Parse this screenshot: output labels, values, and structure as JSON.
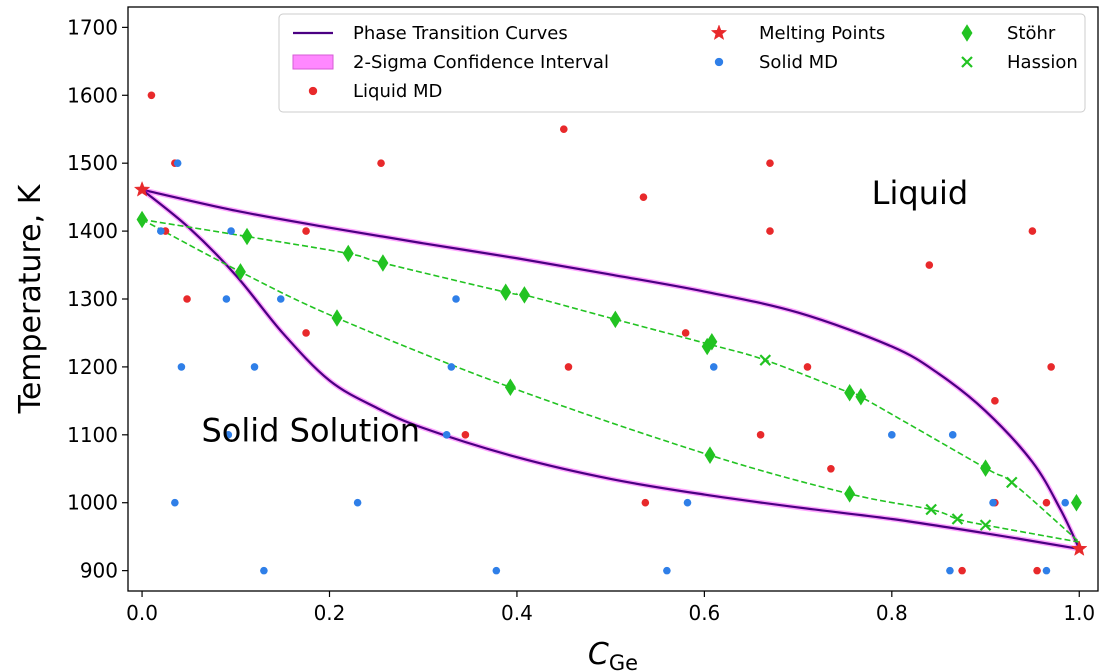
{
  "chart_data": {
    "type": "scatter",
    "xlabel": "C",
    "xlabel_sub": "Ge",
    "ylabel": "Temperature, K",
    "xlim": [
      -0.015,
      1.02
    ],
    "ylim": [
      870,
      1730
    ],
    "xticks": [
      0.0,
      0.2,
      0.4,
      0.6,
      0.8,
      1.0
    ],
    "xtick_labels": [
      "0.0",
      "0.2",
      "0.4",
      "0.6",
      "0.8",
      "1.0"
    ],
    "yticks": [
      900,
      1000,
      1100,
      1200,
      1300,
      1400,
      1500,
      1600,
      1700
    ],
    "ytick_labels": [
      "900",
      "1000",
      "1100",
      "1200",
      "1300",
      "1400",
      "1500",
      "1600",
      "1700"
    ],
    "grid": false,
    "legend_position": "top-right",
    "region_labels": [
      {
        "text": "Liquid",
        "x": 0.83,
        "y": 1440
      },
      {
        "text": "Solid Solution",
        "x": 0.18,
        "y": 1090
      }
    ],
    "series": [
      {
        "name": "Phase Transition Curves",
        "kind": "line",
        "color": "#4b0082",
        "curves": [
          {
            "x": [
              0.0,
              0.1,
              0.2,
              0.3,
              0.4,
              0.5,
              0.6,
              0.7,
              0.8,
              0.85,
              0.9,
              0.95,
              0.98,
              1.0
            ],
            "y": [
              1461,
              1430,
              1405,
              1382,
              1360,
              1336,
              1311,
              1280,
              1230,
              1190,
              1135,
              1060,
              990,
              932
            ]
          },
          {
            "x": [
              0.0,
              0.05,
              0.1,
              0.15,
              0.2,
              0.25,
              0.3,
              0.4,
              0.5,
              0.6,
              0.7,
              0.8,
              0.9,
              1.0
            ],
            "y": [
              1461,
              1405,
              1335,
              1250,
              1180,
              1140,
              1110,
              1067,
              1035,
              1012,
              993,
              976,
              955,
              932
            ]
          }
        ]
      },
      {
        "name": "2-Sigma Confidence Interval",
        "kind": "band",
        "color": "#ff00ff"
      },
      {
        "name": "Liquid MD",
        "kind": "scatter",
        "color": "#e8292b",
        "points": [
          [
            0.01,
            1600
          ],
          [
            0.035,
            1500
          ],
          [
            0.025,
            1400
          ],
          [
            0.048,
            1300
          ],
          [
            0.175,
            1400
          ],
          [
            0.175,
            1250
          ],
          [
            0.255,
            1500
          ],
          [
            0.345,
            1100
          ],
          [
            0.45,
            1550
          ],
          [
            0.455,
            1200
          ],
          [
            0.535,
            1450
          ],
          [
            0.537,
            1000
          ],
          [
            0.58,
            1250
          ],
          [
            0.66,
            1100
          ],
          [
            0.67,
            1500
          ],
          [
            0.67,
            1400
          ],
          [
            0.71,
            1200
          ],
          [
            0.735,
            1050
          ],
          [
            0.84,
            1350
          ],
          [
            0.875,
            900
          ],
          [
            0.91,
            1150
          ],
          [
            0.91,
            1000
          ],
          [
            0.95,
            1400
          ],
          [
            0.955,
            900
          ],
          [
            0.965,
            1000
          ],
          [
            0.97,
            1200
          ]
        ]
      },
      {
        "name": "Melting Points",
        "kind": "scatter",
        "marker": "star",
        "color": "#e8292b",
        "points": [
          [
            0.0,
            1461
          ],
          [
            1.0,
            932
          ]
        ]
      },
      {
        "name": "Solid MD",
        "kind": "scatter",
        "color": "#2f7fe8",
        "points": [
          [
            0.038,
            1500
          ],
          [
            0.02,
            1400
          ],
          [
            0.035,
            1000
          ],
          [
            0.042,
            1200
          ],
          [
            0.09,
            1300
          ],
          [
            0.092,
            1100
          ],
          [
            0.095,
            1400
          ],
          [
            0.12,
            1200
          ],
          [
            0.13,
            900
          ],
          [
            0.148,
            1300
          ],
          [
            0.23,
            1000
          ],
          [
            0.325,
            1100
          ],
          [
            0.33,
            1200
          ],
          [
            0.335,
            1300
          ],
          [
            0.378,
            900
          ],
          [
            0.56,
            900
          ],
          [
            0.582,
            1000
          ],
          [
            0.61,
            1200
          ],
          [
            0.8,
            1100
          ],
          [
            0.862,
            900
          ],
          [
            0.865,
            1100
          ],
          [
            0.908,
            1000
          ],
          [
            0.965,
            900
          ],
          [
            0.985,
            1000
          ]
        ]
      },
      {
        "name": "Stöhr",
        "kind": "scatter",
        "marker": "thin_diamond",
        "color": "#22c322",
        "points": [
          [
            0.0,
            1417
          ],
          [
            0.105,
            1340
          ],
          [
            0.112,
            1392
          ],
          [
            0.208,
            1272
          ],
          [
            0.22,
            1367
          ],
          [
            0.257,
            1353
          ],
          [
            0.388,
            1310
          ],
          [
            0.393,
            1170
          ],
          [
            0.408,
            1306
          ],
          [
            0.505,
            1270
          ],
          [
            0.603,
            1230
          ],
          [
            0.606,
            1070
          ],
          [
            0.608,
            1237
          ],
          [
            0.755,
            1013
          ],
          [
            0.755,
            1162
          ],
          [
            0.767,
            1156
          ],
          [
            0.9,
            1051
          ],
          [
            0.997,
            1000
          ]
        ],
        "curves": [
          {
            "x": [
              0.0,
              0.112,
              0.22,
              0.257,
              0.388,
              0.408,
              0.505,
              0.606,
              0.665,
              0.755,
              0.767,
              0.9,
              0.928,
              1.0
            ],
            "y": [
              1417,
              1392,
              1367,
              1353,
              1310,
              1306,
              1270,
              1233,
              1210,
              1162,
              1156,
              1051,
              1030,
              942
            ]
          },
          {
            "x": [
              0.0,
              0.105,
              0.208,
              0.393,
              0.606,
              0.755,
              0.842,
              0.87,
              0.9,
              1.0
            ],
            "y": [
              1417,
              1340,
              1272,
              1170,
              1070,
              1013,
              990,
              976,
              967,
              942
            ]
          }
        ]
      },
      {
        "name": "Hassion",
        "kind": "scatter",
        "marker": "x",
        "color": "#22c322",
        "points": [
          [
            0.665,
            1210
          ],
          [
            0.842,
            990
          ],
          [
            0.87,
            976
          ],
          [
            0.9,
            967
          ],
          [
            0.928,
            1030
          ]
        ]
      }
    ],
    "legend_order": [
      "Phase Transition Curves",
      "2-Sigma Confidence Interval",
      "Liquid MD",
      "Melting Points",
      "Solid MD",
      "Stöhr",
      "Hassion"
    ]
  }
}
